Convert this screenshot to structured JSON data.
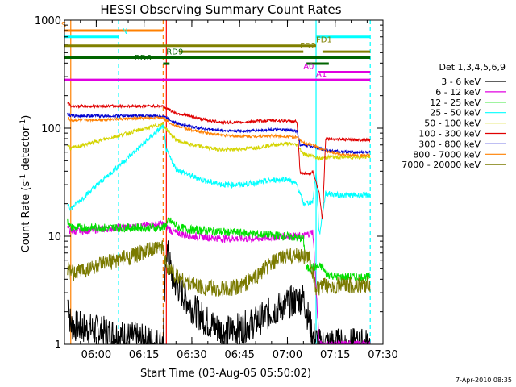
{
  "chart_data": {
    "type": "line",
    "title": "HESSI Observing Summary Count Rates",
    "xlabel": "Start Time (03-Aug-05 05:50:02)",
    "ylabel": "Count Rate (s⁻¹ detector⁻¹)",
    "ylabel_main": "Count Rate (s",
    "ylabel_sup1": "-1",
    "ylabel_mid": " detector",
    "ylabel_sup2": "-1",
    "ylabel_end": ")",
    "x_range": [
      "05:50:02",
      "07:30:00"
    ],
    "y_range": [
      1,
      1000
    ],
    "y_scale": "log",
    "x_ticks": [
      "06:00",
      "06:15",
      "06:30",
      "06:45",
      "07:00",
      "07:15",
      "07:30"
    ],
    "y_ticks": [
      "1",
      "10",
      "100",
      "1000"
    ],
    "footer": "7-Apr-2010 08:35",
    "legend_title": "Det 1,3,4,5,6,9",
    "series": [
      {
        "name": "3 - 6 keV",
        "color": "#000000",
        "points": [
          [
            "05:51",
            2.6
          ],
          [
            "05:52",
            1.5
          ],
          [
            "06:21",
            1.0
          ],
          [
            "06:22",
            8
          ],
          [
            "06:24",
            4
          ],
          [
            "06:27",
            3
          ],
          [
            "06:30",
            2.2
          ],
          [
            "06:35",
            1.6
          ],
          [
            "06:40",
            1.3
          ],
          [
            "06:45",
            1.4
          ],
          [
            "06:50",
            1.6
          ],
          [
            "06:55",
            2.0
          ],
          [
            "07:00",
            2.4
          ],
          [
            "07:05",
            2.7
          ],
          [
            "07:08",
            1.2
          ],
          [
            "07:10",
            1.0
          ],
          [
            "07:12",
            1.0
          ],
          [
            "07:26",
            1.0
          ]
        ]
      },
      {
        "name": "6 - 12 keV",
        "color": "#e000e0",
        "points": [
          [
            "05:51",
            12
          ],
          [
            "05:52",
            11
          ],
          [
            "06:21",
            13
          ],
          [
            "06:24",
            11
          ],
          [
            "06:30",
            10
          ],
          [
            "06:40",
            9.5
          ],
          [
            "06:50",
            9.5
          ],
          [
            "07:00",
            10
          ],
          [
            "07:05",
            10
          ],
          [
            "07:08",
            11
          ],
          [
            "07:10",
            1.0
          ],
          [
            "07:26",
            1.0
          ]
        ]
      },
      {
        "name": "12 - 25 keV",
        "color": "#00e000",
        "points": [
          [
            "05:51",
            14
          ],
          [
            "05:52",
            12
          ],
          [
            "06:21",
            12
          ],
          [
            "06:23",
            14
          ],
          [
            "06:26",
            12
          ],
          [
            "06:30",
            11.5
          ],
          [
            "06:40",
            11
          ],
          [
            "06:50",
            10.5
          ],
          [
            "07:00",
            10
          ],
          [
            "07:05",
            9.5
          ],
          [
            "07:06",
            5
          ],
          [
            "07:09",
            5.2
          ],
          [
            "07:11",
            5.2
          ],
          [
            "07:12",
            4.5
          ],
          [
            "07:16",
            4.2
          ],
          [
            "07:26",
            4.2
          ]
        ]
      },
      {
        "name": "25 - 50 keV",
        "color": "#00ffff",
        "points": [
          [
            "05:51",
            20
          ],
          [
            "05:52",
            18
          ],
          [
            "06:21",
            105
          ],
          [
            "06:22",
            62
          ],
          [
            "06:25",
            42
          ],
          [
            "06:30",
            36
          ],
          [
            "06:35",
            32
          ],
          [
            "06:40",
            30
          ],
          [
            "06:45",
            30
          ],
          [
            "06:50",
            31
          ],
          [
            "06:55",
            33
          ],
          [
            "07:00",
            34
          ],
          [
            "07:03",
            30
          ],
          [
            "07:05",
            20
          ],
          [
            "07:08",
            21
          ],
          [
            "07:09",
            40
          ],
          [
            "07:10",
            10
          ],
          [
            "07:12",
            25
          ],
          [
            "07:16",
            24
          ],
          [
            "07:26",
            24
          ]
        ]
      },
      {
        "name": "50 - 100 keV",
        "color": "#d4d400",
        "points": [
          [
            "05:51",
            70
          ],
          [
            "05:52",
            65
          ],
          [
            "06:21",
            110
          ],
          [
            "06:22",
            98
          ],
          [
            "06:25",
            78
          ],
          [
            "06:30",
            70
          ],
          [
            "06:35",
            66
          ],
          [
            "06:40",
            63
          ],
          [
            "06:45",
            64
          ],
          [
            "06:50",
            66
          ],
          [
            "06:55",
            70
          ],
          [
            "07:00",
            72
          ],
          [
            "07:03",
            70
          ],
          [
            "07:05",
            58
          ],
          [
            "07:08",
            55
          ],
          [
            "07:10",
            52
          ],
          [
            "07:13",
            54
          ],
          [
            "07:20",
            54
          ],
          [
            "07:26",
            54
          ]
        ]
      },
      {
        "name": "100 - 300 keV",
        "color": "#e00000",
        "points": [
          [
            "05:51",
            170
          ],
          [
            "05:52",
            160
          ],
          [
            "06:21",
            160
          ],
          [
            "06:22",
            152
          ],
          [
            "06:25",
            138
          ],
          [
            "06:30",
            128
          ],
          [
            "06:35",
            118
          ],
          [
            "06:40",
            113
          ],
          [
            "06:45",
            113
          ],
          [
            "06:50",
            116
          ],
          [
            "06:55",
            118
          ],
          [
            "07:00",
            117
          ],
          [
            "07:03",
            115
          ],
          [
            "07:04",
            38
          ],
          [
            "07:07",
            38
          ],
          [
            "07:08",
            40
          ],
          [
            "07:10",
            25
          ],
          [
            "07:11",
            14
          ],
          [
            "07:12",
            80
          ],
          [
            "07:20",
            78
          ],
          [
            "07:26",
            78
          ]
        ]
      },
      {
        "name": "300 - 800 keV",
        "color": "#0000d0",
        "points": [
          [
            "05:51",
            135
          ],
          [
            "05:52",
            130
          ],
          [
            "06:21",
            130
          ],
          [
            "06:22",
            125
          ],
          [
            "06:25",
            112
          ],
          [
            "06:30",
            103
          ],
          [
            "06:35",
            98
          ],
          [
            "06:40",
            95
          ],
          [
            "06:45",
            94
          ],
          [
            "06:50",
            95
          ],
          [
            "06:55",
            97
          ],
          [
            "07:00",
            96
          ],
          [
            "07:03",
            94
          ],
          [
            "07:04",
            70
          ],
          [
            "07:08",
            68
          ],
          [
            "07:10",
            65
          ],
          [
            "07:13",
            62
          ],
          [
            "07:20",
            60
          ],
          [
            "07:26",
            60
          ]
        ]
      },
      {
        "name": "800 - 7000 keV",
        "color": "#ff8000",
        "points": [
          [
            "05:51",
            125
          ],
          [
            "05:52",
            118
          ],
          [
            "06:21",
            125
          ],
          [
            "06:22",
            118
          ],
          [
            "06:25",
            105
          ],
          [
            "06:30",
            96
          ],
          [
            "06:35",
            90
          ],
          [
            "06:40",
            86
          ],
          [
            "06:45",
            84
          ],
          [
            "06:50",
            84
          ],
          [
            "06:55",
            85
          ],
          [
            "07:00",
            84
          ],
          [
            "07:03",
            82
          ],
          [
            "07:05",
            73
          ],
          [
            "07:08",
            70
          ],
          [
            "07:10",
            66
          ],
          [
            "07:13",
            60
          ],
          [
            "07:20",
            56
          ],
          [
            "07:26",
            56
          ]
        ]
      },
      {
        "name": "7000 - 20000 keV",
        "color": "#7a7a00",
        "points": [
          [
            "05:51",
            5
          ],
          [
            "05:52",
            4.5
          ],
          [
            "06:21",
            8
          ],
          [
            "06:22",
            5.5
          ],
          [
            "06:25",
            4.3
          ],
          [
            "06:30",
            3.6
          ],
          [
            "06:35",
            3.3
          ],
          [
            "06:40",
            3.2
          ],
          [
            "06:45",
            3.4
          ],
          [
            "06:50",
            4.2
          ],
          [
            "06:55",
            5.6
          ],
          [
            "07:00",
            6.6
          ],
          [
            "07:05",
            6.6
          ],
          [
            "07:07",
            6.2
          ],
          [
            "07:09",
            3.2
          ],
          [
            "07:12",
            3.5
          ],
          [
            "07:20",
            3.5
          ],
          [
            "07:26",
            3.6
          ]
        ]
      }
    ],
    "flags": [
      {
        "label": "S",
        "color": "#ff8000",
        "y": 800,
        "segments": [
          [
            "05:50",
            "06:21"
          ]
        ],
        "label_at": "05:49"
      },
      {
        "label": "N",
        "color": "#00ffff",
        "y": 700,
        "segments": [
          [
            "05:50",
            "06:07"
          ],
          [
            "07:09",
            "07:26"
          ]
        ],
        "label_at": "06:08"
      },
      {
        "label": "FD1",
        "color": "#808000",
        "y": 580,
        "segments": [
          [
            "05:50",
            "07:09"
          ]
        ],
        "label_at": "07:09"
      },
      {
        "label": "FD2",
        "color": "#808000",
        "y": 510,
        "segments": [
          [
            "06:26",
            "07:05"
          ],
          [
            "07:11",
            "07:26"
          ]
        ],
        "label_at": "07:04"
      },
      {
        "label": "RD9",
        "color": "#006400",
        "y": 450,
        "segments": [
          [
            "05:50",
            "07:26"
          ]
        ],
        "label_at": "06:22"
      },
      {
        "label": "RD6",
        "color": "#006400",
        "y": 395,
        "segments": [
          [
            "06:21",
            "06:23"
          ],
          [
            "07:06",
            "07:13"
          ]
        ],
        "label_at": "06:12"
      },
      {
        "label": "A0",
        "color": "#e000e0",
        "y": 330,
        "segments": [
          [
            "07:10",
            "07:26"
          ]
        ],
        "label_at": "07:05"
      },
      {
        "label": "A1",
        "color": "#e000e0",
        "y": 280,
        "segments": [
          [
            "05:50",
            "07:26"
          ]
        ],
        "label_at": "07:09"
      }
    ],
    "vertical_markers": [
      {
        "time": "05:52",
        "color": "#ff8000",
        "style": "solid"
      },
      {
        "time": "06:07",
        "color": "#00ffff",
        "style": "dashed"
      },
      {
        "time": "06:21",
        "color": "#ff8000",
        "style": "dashed"
      },
      {
        "time": "06:22",
        "color": "#ff0000",
        "style": "solid"
      },
      {
        "time": "07:09",
        "color": "#00ffff",
        "style": "solid"
      },
      {
        "time": "07:26",
        "color": "#00ffff",
        "style": "dashed"
      }
    ]
  }
}
